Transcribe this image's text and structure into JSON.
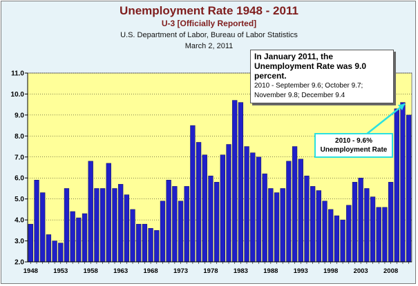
{
  "chart_data": {
    "type": "bar",
    "title": "Unemployment Rate 1948 - 2011",
    "subtitle": "U-3 [Officially Reported]",
    "source": "U.S. Department of Labor, Bureau of Labor Statistics",
    "date": "March 2, 2011",
    "ylim": [
      2.0,
      11.0
    ],
    "yticks": [
      "2.0",
      "3.0",
      "4.0",
      "5.0",
      "6.0",
      "7.0",
      "8.0",
      "9.0",
      "10.0",
      "11.0"
    ],
    "xtick_labels": [
      "1948",
      "1953",
      "1958",
      "1963",
      "1968",
      "1973",
      "1978",
      "1983",
      "1988",
      "1993",
      "1998",
      "2003",
      "2008"
    ],
    "categories": [
      "1948",
      "1949",
      "1950",
      "1951",
      "1952",
      "1953",
      "1954",
      "1955",
      "1956",
      "1957",
      "1958",
      "1959",
      "1960",
      "1961",
      "1962",
      "1963",
      "1964",
      "1965",
      "1966",
      "1967",
      "1968",
      "1969",
      "1970",
      "1971",
      "1972",
      "1973",
      "1974",
      "1975",
      "1976",
      "1977",
      "1978",
      "1979",
      "1980",
      "1981",
      "1982",
      "1983",
      "1984",
      "1985",
      "1986",
      "1987",
      "1988",
      "1989",
      "1990",
      "1991",
      "1992",
      "1993",
      "1994",
      "1995",
      "1996",
      "1997",
      "1998",
      "1999",
      "2000",
      "2001",
      "2002",
      "2003",
      "2004",
      "2005",
      "2006",
      "2007",
      "2008",
      "2009",
      "2010",
      "2011"
    ],
    "values": [
      3.8,
      5.9,
      5.3,
      3.3,
      3.0,
      2.9,
      5.5,
      4.4,
      4.1,
      4.3,
      6.8,
      5.5,
      5.5,
      6.7,
      5.5,
      5.7,
      5.2,
      4.5,
      3.8,
      3.8,
      3.6,
      3.5,
      4.9,
      5.9,
      5.6,
      4.9,
      5.6,
      8.5,
      7.7,
      7.1,
      6.1,
      5.8,
      7.1,
      7.6,
      9.7,
      9.6,
      7.5,
      7.2,
      7.0,
      6.2,
      5.5,
      5.3,
      5.5,
      6.8,
      7.5,
      6.9,
      6.1,
      5.6,
      5.4,
      4.9,
      4.5,
      4.2,
      4.0,
      4.7,
      5.8,
      6.0,
      5.5,
      5.1,
      4.6,
      4.6,
      5.8,
      9.3,
      9.6,
      9.0
    ],
    "grid": true,
    "legend": "none",
    "colors": {
      "bar": "#2020c8",
      "plot_bg": "#ffff99",
      "frame_bg": "#e7f3f8",
      "title": "#7f1d1d",
      "callout_border": "#2ae0e0"
    },
    "annotations": {
      "main_head": "In January 2011, the Unemployment Rate was 9.0 percent.",
      "main_body": "2010 - September 9.6; October 9.7; November 9.8; December 9.4",
      "small_line1": "2010 - 9.6%",
      "small_line2": "Unemployment Rate"
    }
  }
}
